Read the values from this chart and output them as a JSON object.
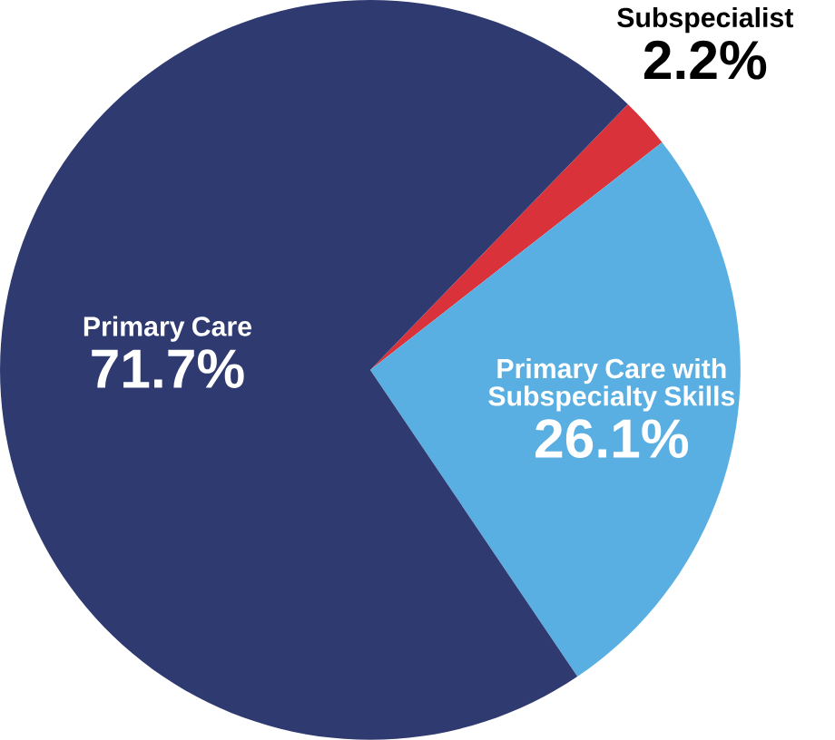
{
  "chart_data": {
    "type": "pie",
    "categories": [
      "Subspecialist",
      "Primary Care with Subspecialty Skills",
      "Primary Care"
    ],
    "values": [
      2.2,
      26.1,
      71.7
    ],
    "colors": [
      "#d9323a",
      "#5aafe2",
      "#2f3b70"
    ],
    "value_labels": [
      "2.2%",
      "26.1%",
      "71.7%"
    ]
  }
}
